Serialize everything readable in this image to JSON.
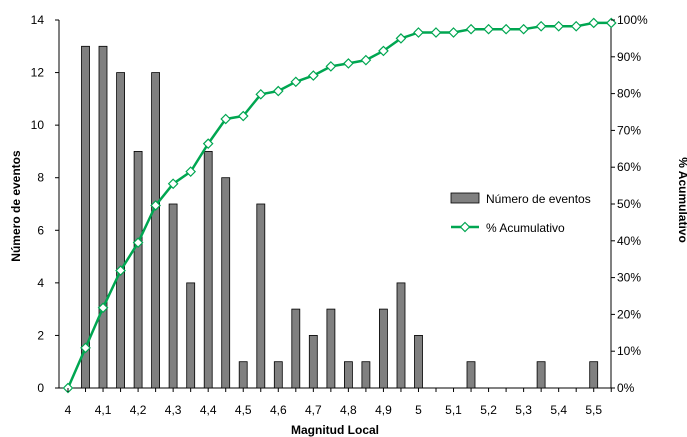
{
  "chart_data": {
    "type": "bar",
    "title": "",
    "xlabel": "Magnitud Local",
    "ylabel": "Número de eventos",
    "y2label": "% Acumulativo",
    "ylim": [
      0,
      14
    ],
    "y_ticks": [
      "0",
      "2",
      "4",
      "6",
      "8",
      "10",
      "12",
      "14"
    ],
    "y2lim": [
      0,
      100
    ],
    "y2_ticks": [
      "0%",
      "10%",
      "20%",
      "30%",
      "40%",
      "50%",
      "60%",
      "70%",
      "80%",
      "90%",
      "100%"
    ],
    "x_tick_labels": [
      "4",
      "4,1",
      "4,2",
      "4,3",
      "4,4",
      "4,5",
      "4,6",
      "4,7",
      "4,8",
      "4,9",
      "5",
      "5,1",
      "5,2",
      "5,3",
      "5,4",
      "5,5"
    ],
    "x": [
      4.0,
      4.05,
      4.1,
      4.15,
      4.2,
      4.25,
      4.3,
      4.35,
      4.4,
      4.45,
      4.5,
      4.55,
      4.6,
      4.65,
      4.7,
      4.75,
      4.8,
      4.85,
      4.9,
      4.95,
      5.0,
      5.05,
      5.1,
      5.15,
      5.2,
      5.25,
      5.3,
      5.35,
      5.4,
      5.45,
      5.5,
      5.55
    ],
    "series": [
      {
        "name": "Número de eventos",
        "type": "bar",
        "axis": "left",
        "color": "#808080",
        "values": [
          0,
          13,
          13,
          12,
          9,
          12,
          7,
          4,
          9,
          8,
          1,
          7,
          1,
          3,
          2,
          3,
          1,
          1,
          3,
          4,
          2,
          0,
          0,
          1,
          0,
          0,
          0,
          1,
          0,
          0,
          1,
          0
        ]
      },
      {
        "name": "% Acumulativo",
        "type": "line",
        "axis": "right",
        "color": "#00A651",
        "values": [
          0,
          10.9,
          21.8,
          31.9,
          39.5,
          49.6,
          55.5,
          58.8,
          66.4,
          73.1,
          73.9,
          79.8,
          80.7,
          83.2,
          84.9,
          87.4,
          88.2,
          89.1,
          91.6,
          95.0,
          96.6,
          96.6,
          96.6,
          97.5,
          97.5,
          97.5,
          97.5,
          98.3,
          98.3,
          98.3,
          99.2,
          99.2
        ]
      }
    ],
    "legend": {
      "position": "right",
      "entries": [
        "Número de eventos",
        "% Acumulativo"
      ]
    },
    "grid": false
  }
}
